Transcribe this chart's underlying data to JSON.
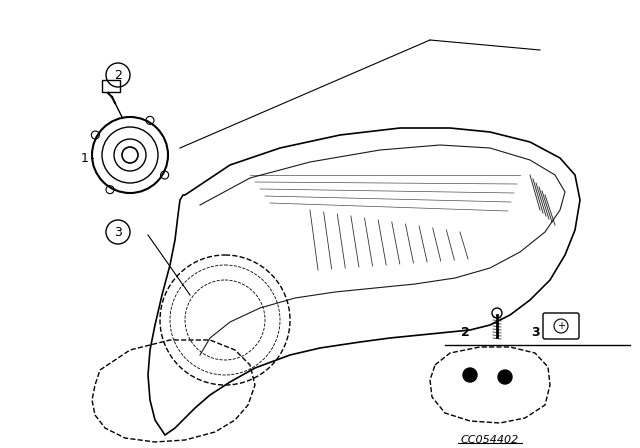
{
  "background_color": "#ffffff",
  "image_code": "CC054402",
  "line_color": "#000000",
  "text_color": "#000000",
  "fig_width": 6.4,
  "fig_height": 4.48,
  "dpi": 100
}
